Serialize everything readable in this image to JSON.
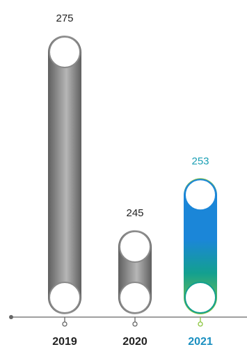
{
  "chart_data": {
    "type": "bar",
    "categories": [
      "2019",
      "2020",
      "2021"
    ],
    "values": [
      275,
      245,
      253
    ],
    "value_labels": [
      "275",
      "245",
      "253"
    ],
    "highlight_index": 2,
    "title": "",
    "xlabel": "",
    "ylabel": "",
    "grid": false,
    "legend": "none",
    "colors": {
      "bar_dark": "#5f5f5f",
      "bar_light": "#b6b6b6",
      "highlight_top": "#8cc63f",
      "highlight_mid": "#13a08f",
      "highlight_bottom": "#1b86d8",
      "highlight_text": "#1a9fb4",
      "highlight_axis_text": "#1a8fc0",
      "text": "#222222",
      "axis": "#666666"
    }
  }
}
